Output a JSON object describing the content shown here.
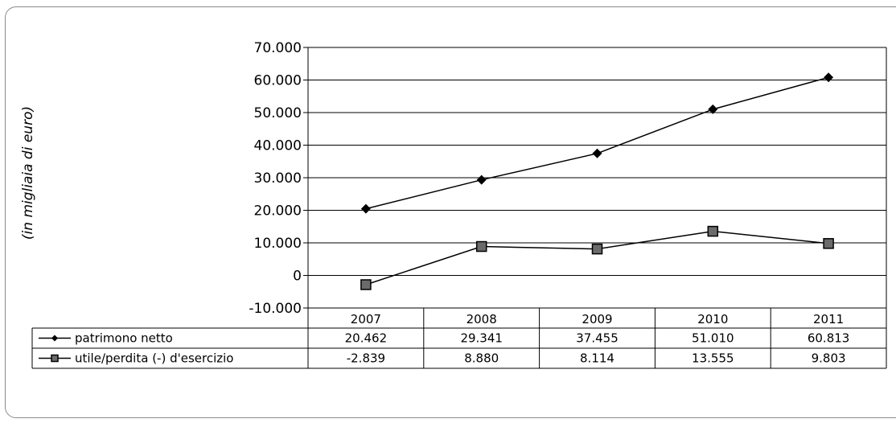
{
  "chart_data": {
    "type": "line",
    "ylabel": "(in migliaia di euro)",
    "y_ticks": [
      "70.000",
      "60.000",
      "50.000",
      "40.000",
      "30.000",
      "20.000",
      "10.000",
      "0",
      "-10.000"
    ],
    "ylim": [
      -10000,
      70000
    ],
    "categories": [
      "2007",
      "2008",
      "2009",
      "2010",
      "2011"
    ],
    "grid": true,
    "legend": "data-table-below",
    "series": [
      {
        "name": "patrimono netto",
        "marker": "diamond",
        "values": [
          20462,
          29341,
          37455,
          51010,
          60813
        ],
        "labels": [
          "20.462",
          "29.341",
          "37.455",
          "51.010",
          "60.813"
        ]
      },
      {
        "name": "utile/perdita (-) d'esercizio",
        "marker": "square",
        "values": [
          -2839,
          8880,
          8114,
          13555,
          9803
        ],
        "labels": [
          "-2.839",
          "8.880",
          "8.114",
          "13.555",
          "9.803"
        ]
      }
    ]
  }
}
